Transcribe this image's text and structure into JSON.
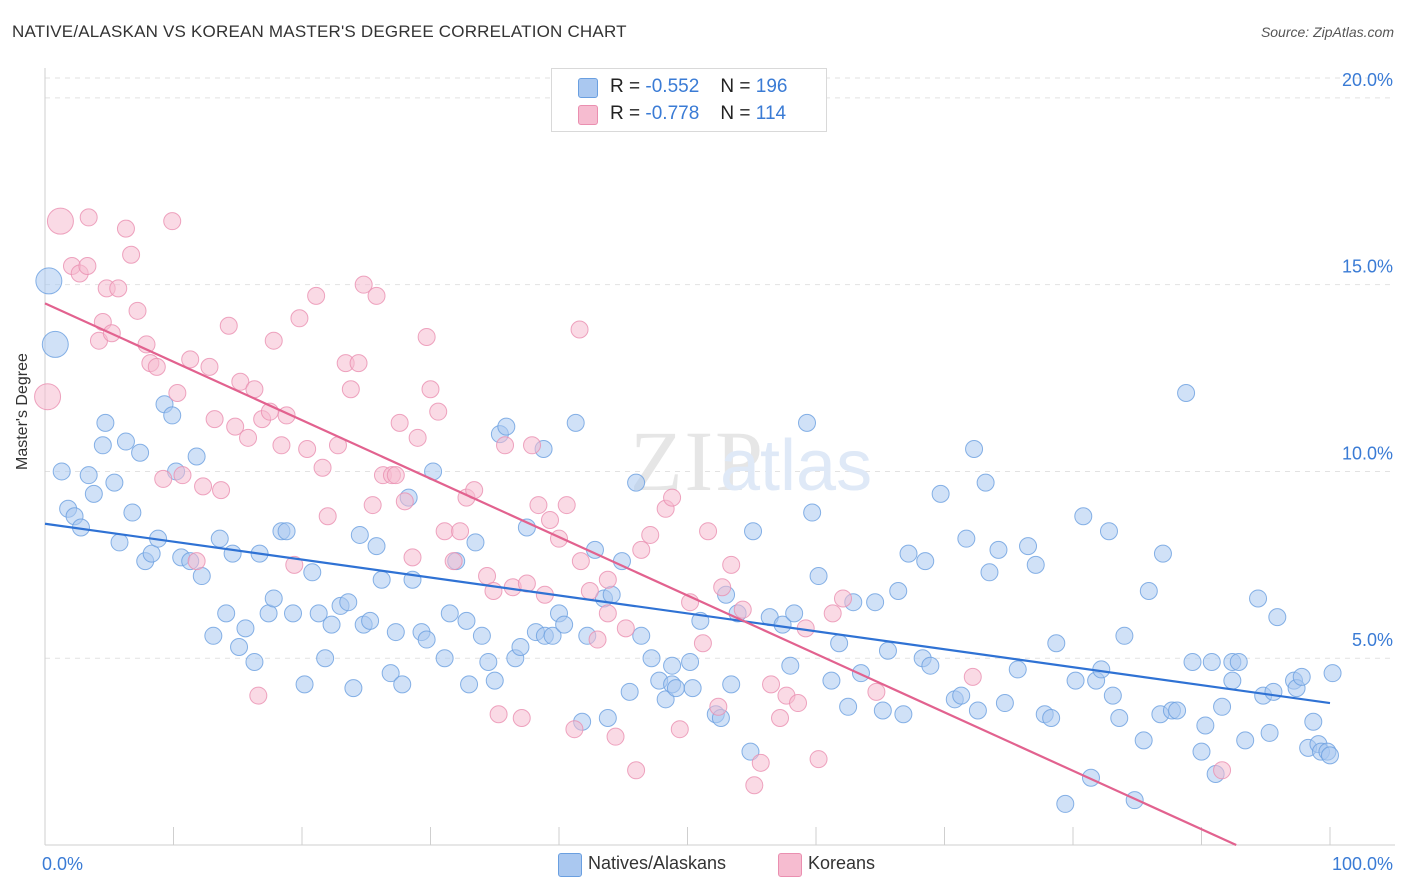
{
  "header": {
    "title": "NATIVE/ALASKAN VS KOREAN MASTER'S DEGREE CORRELATION CHART",
    "source": "Source: ZipAtlas.com"
  },
  "watermark": {
    "part1": "ZIP",
    "part2": "atlas"
  },
  "legend": {
    "r_label": "R =",
    "n_label": "N =",
    "rows": [
      {
        "r": "-0.552",
        "n": "196"
      },
      {
        "r": "-0.778",
        "n": "114"
      }
    ]
  },
  "colors": {
    "native_fill": "#aac8f0",
    "native_stroke": "#6a9fe0",
    "native_line": "#2f72d4",
    "korean_fill": "#f6bcd0",
    "korean_stroke": "#ea8fb0",
    "korean_line": "#e2628f",
    "axis_text": "#3a7bd5"
  },
  "chart_data": {
    "type": "scatter",
    "title": "NATIVE/ALASKAN VS KOREAN MASTER'S DEGREE CORRELATION CHART",
    "xlabel": "",
    "ylabel": "Master's Degree",
    "xlim": [
      0,
      100
    ],
    "ylim": [
      0,
      20.8
    ],
    "x_tick_labels": [
      "0.0%",
      "100.0%"
    ],
    "y_ticks": [
      5,
      10,
      15,
      20
    ],
    "y_tick_labels": [
      "5.0%",
      "10.0%",
      "15.0%",
      "20.0%"
    ],
    "grid": true,
    "legend_position": "top-center",
    "series": [
      {
        "name": "Natives/Alaskans",
        "regression": {
          "x": [
            0,
            100
          ],
          "y": [
            8.6,
            3.8
          ]
        },
        "points": [
          [
            0.3,
            15.1
          ],
          [
            0.8,
            13.4
          ],
          [
            1.3,
            10.0
          ],
          [
            1.8,
            9.0
          ],
          [
            2.3,
            8.8
          ],
          [
            2.8,
            8.5
          ],
          [
            3.4,
            9.9
          ],
          [
            3.8,
            9.4
          ],
          [
            4.5,
            10.7
          ],
          [
            4.7,
            11.3
          ],
          [
            5.4,
            9.7
          ],
          [
            5.8,
            8.1
          ],
          [
            6.3,
            10.8
          ],
          [
            6.8,
            8.9
          ],
          [
            7.4,
            10.5
          ],
          [
            7.8,
            7.6
          ],
          [
            8.3,
            7.8
          ],
          [
            8.8,
            8.2
          ],
          [
            9.3,
            11.8
          ],
          [
            9.9,
            11.5
          ],
          [
            10.2,
            10.0
          ],
          [
            10.6,
            7.7
          ],
          [
            11.3,
            7.6
          ],
          [
            11.8,
            10.4
          ],
          [
            12.2,
            7.2
          ],
          [
            13.1,
            5.6
          ],
          [
            13.6,
            8.2
          ],
          [
            14.1,
            6.2
          ],
          [
            14.6,
            7.8
          ],
          [
            15.1,
            5.3
          ],
          [
            15.6,
            5.8
          ],
          [
            16.3,
            4.9
          ],
          [
            16.7,
            7.8
          ],
          [
            17.4,
            6.2
          ],
          [
            17.8,
            6.6
          ],
          [
            18.4,
            8.4
          ],
          [
            18.8,
            8.4
          ],
          [
            19.3,
            6.2
          ],
          [
            20.2,
            4.3
          ],
          [
            20.8,
            7.3
          ],
          [
            21.3,
            6.2
          ],
          [
            21.8,
            5.0
          ],
          [
            22.3,
            5.9
          ],
          [
            23.0,
            6.4
          ],
          [
            23.6,
            6.5
          ],
          [
            24.0,
            4.2
          ],
          [
            24.5,
            8.3
          ],
          [
            24.8,
            5.9
          ],
          [
            25.3,
            6.0
          ],
          [
            25.8,
            8.0
          ],
          [
            26.2,
            7.1
          ],
          [
            26.9,
            4.6
          ],
          [
            27.3,
            5.7
          ],
          [
            27.8,
            4.3
          ],
          [
            28.3,
            9.3
          ],
          [
            28.6,
            7.1
          ],
          [
            29.3,
            5.7
          ],
          [
            29.7,
            5.5
          ],
          [
            30.2,
            10.0
          ],
          [
            31.1,
            5.0
          ],
          [
            31.5,
            6.2
          ],
          [
            32.0,
            7.6
          ],
          [
            32.8,
            6.0
          ],
          [
            33.0,
            4.3
          ],
          [
            33.5,
            8.1
          ],
          [
            34.0,
            5.6
          ],
          [
            34.5,
            4.9
          ],
          [
            35.0,
            4.4
          ],
          [
            35.4,
            11.0
          ],
          [
            35.9,
            11.2
          ],
          [
            36.6,
            5.0
          ],
          [
            37.0,
            5.3
          ],
          [
            37.5,
            8.5
          ],
          [
            38.2,
            5.7
          ],
          [
            38.8,
            10.6
          ],
          [
            38.9,
            5.6
          ],
          [
            39.5,
            5.6
          ],
          [
            40.0,
            6.2
          ],
          [
            40.4,
            5.9
          ],
          [
            41.3,
            11.3
          ],
          [
            41.8,
            3.3
          ],
          [
            42.2,
            5.6
          ],
          [
            42.8,
            7.9
          ],
          [
            43.5,
            6.6
          ],
          [
            43.8,
            3.4
          ],
          [
            44.1,
            6.7
          ],
          [
            44.9,
            7.6
          ],
          [
            45.5,
            4.1
          ],
          [
            46.0,
            9.7
          ],
          [
            46.4,
            5.6
          ],
          [
            47.2,
            5.0
          ],
          [
            47.8,
            4.4
          ],
          [
            48.3,
            3.9
          ],
          [
            48.8,
            4.3
          ],
          [
            48.8,
            4.8
          ],
          [
            49.1,
            4.2
          ],
          [
            50.2,
            4.9
          ],
          [
            50.4,
            4.2
          ],
          [
            51.0,
            6.0
          ],
          [
            52.2,
            3.5
          ],
          [
            52.6,
            3.4
          ],
          [
            53.0,
            6.7
          ],
          [
            53.4,
            4.3
          ],
          [
            53.9,
            6.2
          ],
          [
            54.9,
            2.5
          ],
          [
            55.1,
            8.4
          ],
          [
            56.4,
            6.1
          ],
          [
            57.4,
            5.9
          ],
          [
            58.0,
            4.8
          ],
          [
            58.3,
            6.2
          ],
          [
            59.3,
            11.3
          ],
          [
            59.7,
            8.9
          ],
          [
            60.2,
            7.2
          ],
          [
            61.2,
            4.4
          ],
          [
            61.8,
            5.4
          ],
          [
            62.5,
            3.7
          ],
          [
            62.9,
            6.5
          ],
          [
            63.5,
            4.6
          ],
          [
            64.6,
            6.5
          ],
          [
            65.2,
            3.6
          ],
          [
            65.6,
            5.2
          ],
          [
            66.4,
            6.8
          ],
          [
            66.8,
            3.5
          ],
          [
            67.2,
            7.8
          ],
          [
            68.3,
            5.0
          ],
          [
            68.5,
            7.6
          ],
          [
            68.9,
            4.8
          ],
          [
            69.7,
            9.4
          ],
          [
            70.8,
            3.9
          ],
          [
            71.3,
            4.0
          ],
          [
            71.7,
            8.2
          ],
          [
            72.3,
            10.6
          ],
          [
            72.6,
            3.6
          ],
          [
            73.2,
            9.7
          ],
          [
            73.5,
            7.3
          ],
          [
            74.2,
            7.9
          ],
          [
            74.7,
            3.8
          ],
          [
            75.7,
            4.7
          ],
          [
            76.5,
            8.0
          ],
          [
            77.1,
            7.5
          ],
          [
            77.8,
            3.5
          ],
          [
            78.3,
            3.4
          ],
          [
            78.7,
            5.4
          ],
          [
            79.4,
            1.1
          ],
          [
            80.2,
            4.4
          ],
          [
            80.8,
            8.8
          ],
          [
            81.4,
            1.8
          ],
          [
            81.8,
            4.4
          ],
          [
            82.2,
            4.7
          ],
          [
            82.8,
            8.4
          ],
          [
            83.1,
            4.0
          ],
          [
            83.6,
            3.4
          ],
          [
            84.0,
            5.6
          ],
          [
            84.8,
            1.2
          ],
          [
            85.5,
            2.8
          ],
          [
            85.9,
            6.8
          ],
          [
            86.8,
            3.5
          ],
          [
            87.0,
            7.8
          ],
          [
            87.7,
            3.6
          ],
          [
            88.1,
            3.6
          ],
          [
            88.8,
            12.1
          ],
          [
            89.3,
            4.9
          ],
          [
            90.0,
            2.5
          ],
          [
            90.3,
            3.2
          ],
          [
            90.8,
            4.9
          ],
          [
            91.1,
            1.9
          ],
          [
            91.6,
            3.7
          ],
          [
            92.4,
            4.4
          ],
          [
            92.4,
            4.9
          ],
          [
            92.9,
            4.9
          ],
          [
            93.4,
            2.8
          ],
          [
            94.4,
            6.6
          ],
          [
            94.8,
            4.0
          ],
          [
            95.3,
            3.0
          ],
          [
            95.6,
            4.1
          ],
          [
            95.9,
            6.1
          ],
          [
            97.2,
            4.4
          ],
          [
            97.4,
            4.2
          ],
          [
            97.8,
            4.5
          ],
          [
            98.3,
            2.6
          ],
          [
            98.7,
            3.3
          ],
          [
            99.1,
            2.7
          ],
          [
            99.3,
            2.5
          ],
          [
            99.8,
            2.5
          ],
          [
            100.0,
            2.4
          ],
          [
            100.2,
            4.6
          ]
        ]
      },
      {
        "name": "Koreans",
        "regression": {
          "x": [
            0,
            92.7
          ],
          "y": [
            14.5,
            0.0
          ]
        },
        "points": [
          [
            0.2,
            12.0
          ],
          [
            1.2,
            16.7
          ],
          [
            2.1,
            15.5
          ],
          [
            2.7,
            15.3
          ],
          [
            3.3,
            15.5
          ],
          [
            3.4,
            16.8
          ],
          [
            4.2,
            13.5
          ],
          [
            4.5,
            14.0
          ],
          [
            4.8,
            14.9
          ],
          [
            5.2,
            13.7
          ],
          [
            5.7,
            14.9
          ],
          [
            6.3,
            16.5
          ],
          [
            6.7,
            15.8
          ],
          [
            7.2,
            14.3
          ],
          [
            7.9,
            13.4
          ],
          [
            8.2,
            12.9
          ],
          [
            8.7,
            12.8
          ],
          [
            9.2,
            9.8
          ],
          [
            9.9,
            16.7
          ],
          [
            10.3,
            12.1
          ],
          [
            10.7,
            9.9
          ],
          [
            11.3,
            13.0
          ],
          [
            11.8,
            7.6
          ],
          [
            12.3,
            9.6
          ],
          [
            12.8,
            12.8
          ],
          [
            13.2,
            11.4
          ],
          [
            13.7,
            9.5
          ],
          [
            14.3,
            13.9
          ],
          [
            14.8,
            11.2
          ],
          [
            15.2,
            12.4
          ],
          [
            15.8,
            10.9
          ],
          [
            16.3,
            12.2
          ],
          [
            16.6,
            4.0
          ],
          [
            16.9,
            11.4
          ],
          [
            17.5,
            11.6
          ],
          [
            17.8,
            13.5
          ],
          [
            18.4,
            10.7
          ],
          [
            18.8,
            11.5
          ],
          [
            19.4,
            7.5
          ],
          [
            19.8,
            14.1
          ],
          [
            20.4,
            10.6
          ],
          [
            21.1,
            14.7
          ],
          [
            21.6,
            10.1
          ],
          [
            22.0,
            8.8
          ],
          [
            22.8,
            10.7
          ],
          [
            23.4,
            12.9
          ],
          [
            23.8,
            12.2
          ],
          [
            24.4,
            12.9
          ],
          [
            24.8,
            15.0
          ],
          [
            25.5,
            9.1
          ],
          [
            25.8,
            14.7
          ],
          [
            26.3,
            9.9
          ],
          [
            27.0,
            9.9
          ],
          [
            27.3,
            9.9
          ],
          [
            27.6,
            11.3
          ],
          [
            28.0,
            9.2
          ],
          [
            28.6,
            7.7
          ],
          [
            29.0,
            10.9
          ],
          [
            29.7,
            13.6
          ],
          [
            30.0,
            12.2
          ],
          [
            30.6,
            11.6
          ],
          [
            31.1,
            8.4
          ],
          [
            31.8,
            7.6
          ],
          [
            32.3,
            8.4
          ],
          [
            32.8,
            9.3
          ],
          [
            33.4,
            9.5
          ],
          [
            34.4,
            7.2
          ],
          [
            34.9,
            6.8
          ],
          [
            35.3,
            3.5
          ],
          [
            35.8,
            10.7
          ],
          [
            36.4,
            6.9
          ],
          [
            37.1,
            3.4
          ],
          [
            37.5,
            7.0
          ],
          [
            37.9,
            10.7
          ],
          [
            38.4,
            9.1
          ],
          [
            38.9,
            6.7
          ],
          [
            39.3,
            8.7
          ],
          [
            40.0,
            8.2
          ],
          [
            40.6,
            9.1
          ],
          [
            41.2,
            3.1
          ],
          [
            41.6,
            13.8
          ],
          [
            41.7,
            7.6
          ],
          [
            42.4,
            6.8
          ],
          [
            43.0,
            5.5
          ],
          [
            43.8,
            7.1
          ],
          [
            43.8,
            6.2
          ],
          [
            44.4,
            2.9
          ],
          [
            45.2,
            5.8
          ],
          [
            46.0,
            2.0
          ],
          [
            46.4,
            7.9
          ],
          [
            47.1,
            8.3
          ],
          [
            48.3,
            9.0
          ],
          [
            48.8,
            9.3
          ],
          [
            49.4,
            3.1
          ],
          [
            50.2,
            6.5
          ],
          [
            51.2,
            5.4
          ],
          [
            51.6,
            8.4
          ],
          [
            52.4,
            3.7
          ],
          [
            52.7,
            6.9
          ],
          [
            53.4,
            7.5
          ],
          [
            54.3,
            6.3
          ],
          [
            55.2,
            1.6
          ],
          [
            55.7,
            2.2
          ],
          [
            56.5,
            4.3
          ],
          [
            57.2,
            3.4
          ],
          [
            57.7,
            4.0
          ],
          [
            58.6,
            3.8
          ],
          [
            59.2,
            5.8
          ],
          [
            60.2,
            2.3
          ],
          [
            61.3,
            6.2
          ],
          [
            62.1,
            6.6
          ],
          [
            64.7,
            4.1
          ],
          [
            72.2,
            4.5
          ],
          [
            91.6,
            2.0
          ]
        ]
      }
    ]
  },
  "bottom_legend": {
    "items": [
      "Natives/Alaskans",
      "Koreans"
    ]
  }
}
